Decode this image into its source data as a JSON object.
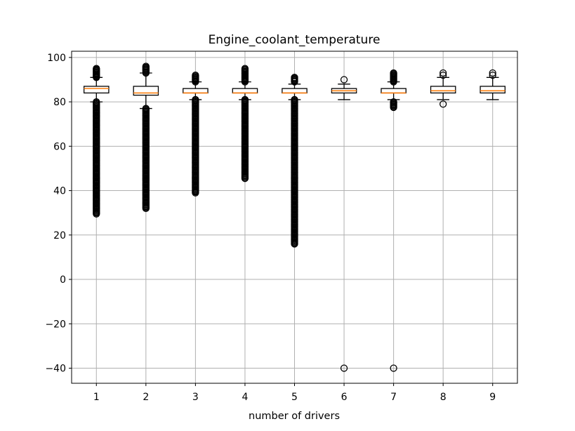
{
  "chart_data": {
    "type": "box",
    "title": "Engine_coolant_temperature",
    "xlabel": "number of drivers",
    "ylabel": "",
    "ylim": [
      -46.8,
      102.8
    ],
    "yticks": [
      -40,
      -20,
      0,
      20,
      40,
      60,
      80,
      100
    ],
    "categories": [
      "1",
      "2",
      "3",
      "4",
      "5",
      "6",
      "7",
      "8",
      "9"
    ],
    "grid": true,
    "colors": {
      "box": "#000000",
      "median": "#ff7f0e",
      "grid": "#b0b0b0"
    },
    "boxes": [
      {
        "label": "1",
        "q1": 84,
        "median": 86,
        "q3": 87,
        "whisker_low": 80,
        "whisker_high": 91,
        "outliers_low_range": [
          29.5,
          80
        ],
        "outliers_high_range": [
          91,
          95
        ]
      },
      {
        "label": "2",
        "q1": 83,
        "median": 84,
        "q3": 87,
        "whisker_low": 77,
        "whisker_high": 93,
        "outliers_low_range": [
          32,
          77
        ],
        "outliers_high_range": [
          93,
          96
        ]
      },
      {
        "label": "3",
        "q1": 84,
        "median": 84,
        "q3": 86,
        "whisker_low": 81,
        "whisker_high": 89,
        "outliers_low_range": [
          39,
          81
        ],
        "outliers_high_range": [
          89,
          92
        ]
      },
      {
        "label": "4",
        "q1": 84,
        "median": 84,
        "q3": 86,
        "whisker_low": 81,
        "whisker_high": 89,
        "outliers_low_range": [
          45.5,
          81
        ],
        "outliers_high_range": [
          89,
          95
        ]
      },
      {
        "label": "5",
        "q1": 84,
        "median": 84,
        "q3": 86,
        "whisker_low": 81,
        "whisker_high": 88,
        "outliers_low_range": [
          16,
          81
        ],
        "outliers_high_range": [
          89,
          91
        ]
      },
      {
        "label": "6",
        "q1": 84,
        "median": 85,
        "q3": 86,
        "whisker_low": 81,
        "whisker_high": 88,
        "outliers": [
          -40,
          90
        ]
      },
      {
        "label": "7",
        "q1": 84,
        "median": 84,
        "q3": 86,
        "whisker_low": 81,
        "whisker_high": 89,
        "outliers_low_range": [
          77.5,
          80
        ],
        "outliers_high_range": [
          89,
          93
        ],
        "outliers": [
          -40
        ]
      },
      {
        "label": "8",
        "q1": 84,
        "median": 85,
        "q3": 87,
        "whisker_low": 81,
        "whisker_high": 91,
        "outliers": [
          79,
          92,
          93
        ]
      },
      {
        "label": "9",
        "q1": 84,
        "median": 85,
        "q3": 87,
        "whisker_low": 81,
        "whisker_high": 91,
        "outliers": [
          92,
          93
        ]
      }
    ]
  }
}
